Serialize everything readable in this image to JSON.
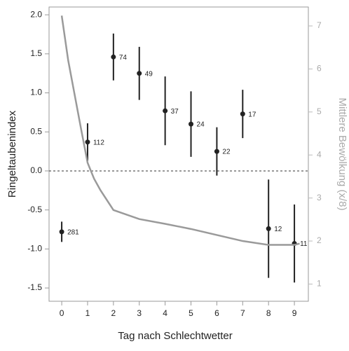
{
  "chart_data": {
    "type": "scatter",
    "xlabel": "Tag nach Schlechtwetter",
    "ylabel": "Ringeltaubenindex",
    "y2label": "Mittlere Bewölkung (x/8)",
    "xlim": [
      -0.49,
      9.54
    ],
    "xticks": [
      0,
      1,
      2,
      3,
      4,
      5,
      6,
      7,
      8,
      9
    ],
    "ylim": [
      -1.67,
      2.1
    ],
    "yticks": [
      {
        "value": -1.5,
        "label": "-1.5"
      },
      {
        "value": -1,
        "label": "-1.0"
      },
      {
        "value": -0.5,
        "label": "-0.5"
      },
      {
        "value": 0,
        "label": "0.0"
      },
      {
        "value": 0.5,
        "label": "0.5"
      },
      {
        "value": 1,
        "label": "1.0"
      },
      {
        "value": 1.5,
        "label": "1.5"
      },
      {
        "value": 2,
        "label": "2.0"
      }
    ],
    "y2lim": [
      0.6,
      7.44
    ],
    "y2ticks": [
      1,
      2,
      3,
      4,
      5,
      6,
      7
    ],
    "reference_line": 0,
    "series": [
      {
        "type": "errorbar",
        "color": "#222222",
        "x": [
          0,
          1,
          2,
          3,
          4,
          5,
          6,
          7,
          8,
          9
        ],
        "values": [
          -0.78,
          0.37,
          1.46,
          1.25,
          0.77,
          0.6,
          0.25,
          0.73,
          -0.74,
          -0.93
        ],
        "errors": [
          0.13,
          0.24,
          0.3,
          0.34,
          0.44,
          0.42,
          0.31,
          0.31,
          0.63,
          0.5
        ],
        "counts": [
          281,
          112,
          74,
          49,
          37,
          24,
          22,
          17,
          12,
          11
        ]
      },
      {
        "type": "line",
        "axis": "y2",
        "color": "#9a9a9a",
        "x": [
          0,
          0.25,
          0.5,
          0.75,
          1,
          1.25,
          1.5,
          2,
          3,
          4,
          5,
          6,
          7,
          8,
          9,
          9.2
        ],
        "values": [
          7.24,
          6.2,
          5.4,
          4.6,
          3.82,
          3.45,
          3.18,
          2.72,
          2.51,
          2.4,
          2.28,
          2.14,
          2.0,
          1.91,
          1.91,
          1.94
        ]
      }
    ]
  }
}
